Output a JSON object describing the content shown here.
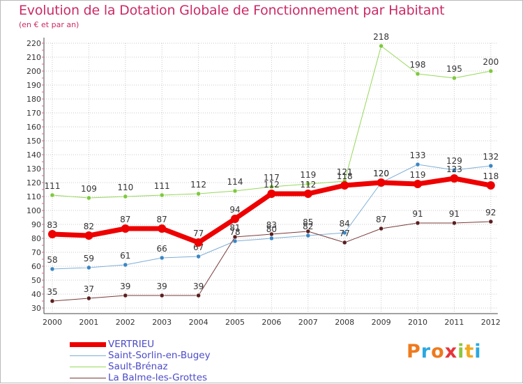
{
  "title": "Evolution de la Dotation Globale de Fonctionnement par Habitant",
  "subtitle": "(en € et par an)",
  "brand": {
    "letters": [
      "P",
      "r",
      "o",
      "x",
      "i",
      "t",
      "i"
    ],
    "colors": [
      "#ee7a1d",
      "#2aa8e0",
      "#ee7a1d",
      "#e8343b",
      "#8cc63f",
      "#f2a91d",
      "#2aa8e0"
    ]
  },
  "chart_data": {
    "type": "line",
    "categories": [
      "2000",
      "2001",
      "2002",
      "2003",
      "2004",
      "2005",
      "2006",
      "2007",
      "2008",
      "2009",
      "2010",
      "2011",
      "2012"
    ],
    "ylim": [
      30,
      220
    ],
    "yticks": [
      30,
      40,
      50,
      60,
      70,
      80,
      90,
      100,
      110,
      120,
      130,
      140,
      150,
      160,
      170,
      180,
      190,
      200,
      210,
      220
    ],
    "series": [
      {
        "name": "Sault-Brénaz",
        "color": "#96d85a",
        "marker": "#7ec83e",
        "width": 1,
        "values": [
          111,
          109,
          110,
          111,
          112,
          114,
          117,
          119,
          121,
          218,
          198,
          195,
          200
        ]
      },
      {
        "name": "Saint-Sorlin-en-Bugey",
        "color": "#7eaed8",
        "marker": "#3a86c4",
        "width": 1,
        "values": [
          58,
          59,
          61,
          66,
          67,
          78,
          80,
          82,
          84,
          120,
          133,
          129,
          132
        ]
      },
      {
        "name": "La Balme-les-Grottes",
        "color": "#7a3a3a",
        "marker": "#5a1e1e",
        "width": 1,
        "values": [
          35,
          37,
          39,
          39,
          39,
          81,
          83,
          85,
          77,
          87,
          91,
          91,
          92
        ]
      },
      {
        "name": "VERTRIEU",
        "color": "#ee0000",
        "marker": "#ee0000",
        "width": 7,
        "values": [
          83,
          82,
          87,
          87,
          77,
          94,
          112,
          112,
          118,
          120,
          119,
          123,
          118
        ]
      }
    ],
    "legend": [
      {
        "name": "VERTRIEU",
        "color": "#ee0000",
        "width": 7
      },
      {
        "name": "Saint-Sorlin-en-Bugey",
        "color": "#7eaed8",
        "width": 1
      },
      {
        "name": "Sault-Brénaz",
        "color": "#96d85a",
        "width": 1
      },
      {
        "name": "La Balme-les-Grottes",
        "color": "#7a3a3a",
        "width": 1
      }
    ]
  }
}
